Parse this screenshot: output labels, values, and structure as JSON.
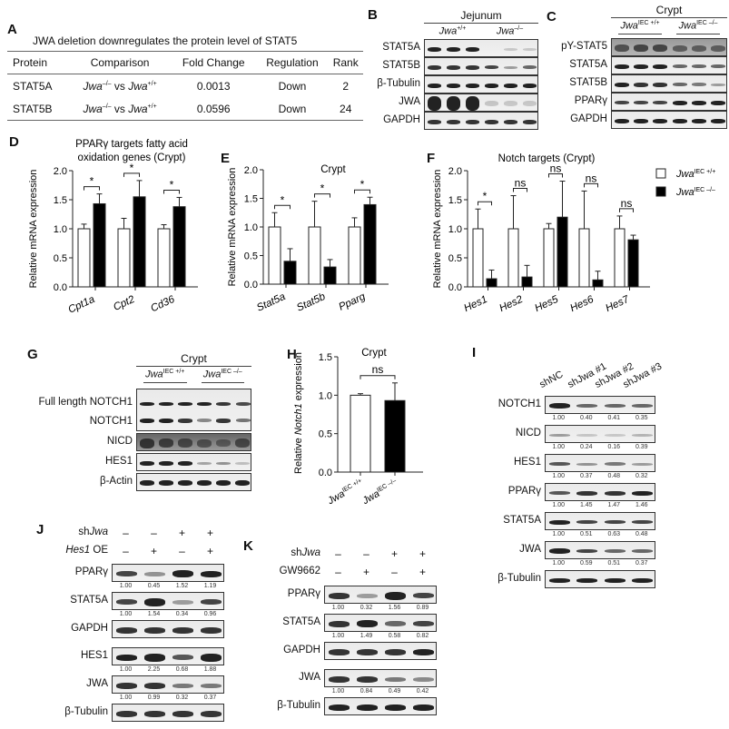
{
  "panels": {
    "A": {
      "label": "A",
      "title": "JWA deletion downregulates the protein level of STAT5",
      "columns": [
        "Protein",
        "Comparison",
        "Fold Change",
        "Regulation",
        "Rank"
      ],
      "rows": [
        {
          "protein": "STAT5A",
          "comp_a": "Jwa",
          "comp_a_sup": "–/–",
          "vs": " vs ",
          "comp_b": "Jwa",
          "comp_b_sup": "+/+",
          "fold": "0.0013",
          "regulation": "Down",
          "rank": "2"
        },
        {
          "protein": "STAT5B",
          "comp_a": "Jwa",
          "comp_a_sup": "–/–",
          "vs": " vs ",
          "comp_b": "Jwa",
          "comp_b_sup": "+/+",
          "fold": "0.0596",
          "regulation": "Down",
          "rank": "24"
        }
      ]
    },
    "B": {
      "label": "B",
      "tissue": "Jejunum",
      "group1": "Jwa",
      "group1_sup": "+/+",
      "group2": "Jwa",
      "group2_sup": "–/–",
      "rows": [
        "STAT5A",
        "STAT5B",
        "β-Tubulin",
        "JWA",
        "GAPDH"
      ]
    },
    "C": {
      "label": "C",
      "tissue": "Crypt",
      "group1": "Jwa",
      "group1_sup": "IEC +/+",
      "group2": "Jwa",
      "group2_sup": "IEC –/–",
      "rows": [
        "pY-STAT5",
        "STAT5A",
        "STAT5B",
        "PPARγ",
        "GAPDH"
      ]
    },
    "D": {
      "label": "D"
    },
    "E": {
      "label": "E"
    },
    "F": {
      "label": "F"
    },
    "G": {
      "label": "G",
      "tissue": "Crypt",
      "group1": "Jwa",
      "group1_sup": "IEC +/+",
      "group2": "Jwa",
      "group2_sup": "IEC –/–",
      "rows": [
        "Full length NOTCH1",
        "NOTCH1",
        "NICD",
        "HES1",
        "β-Actin"
      ]
    },
    "H": {
      "label": "H"
    },
    "I": {
      "label": "I",
      "lanes": [
        "shNC",
        "shJwa #1",
        "shJwa #2",
        "shJwa #3"
      ],
      "rows": [
        {
          "name": "NOTCH1",
          "quant": [
            "1.00",
            "0.40",
            "0.41",
            "0.35"
          ]
        },
        {
          "name": "NICD",
          "quant": [
            "1.00",
            "0.24",
            "0.16",
            "0.39"
          ]
        },
        {
          "name": "HES1",
          "quant": [
            "1.00",
            "0.37",
            "0.48",
            "0.32"
          ]
        },
        {
          "name": "PPARγ",
          "quant": [
            "1.00",
            "1.45",
            "1.47",
            "1.46"
          ]
        },
        {
          "name": "STAT5A",
          "quant": [
            "1.00",
            "0.51",
            "0.63",
            "0.48"
          ]
        },
        {
          "name": "JWA",
          "quant": [
            "1.00",
            "0.59",
            "0.51",
            "0.37"
          ]
        },
        {
          "name": "β-Tubulin",
          "quant": []
        }
      ]
    },
    "J": {
      "label": "J",
      "conditions": [
        {
          "name": "shJwa",
          "values": [
            "–",
            "–",
            "+",
            "+"
          ]
        },
        {
          "name": "Hes1 OE",
          "values": [
            "–",
            "+",
            "–",
            "+"
          ]
        }
      ],
      "rows": [
        {
          "name": "PPARγ",
          "quant": [
            "1.00",
            "0.45",
            "1.52",
            "1.19"
          ]
        },
        {
          "name": "STAT5A",
          "quant": [
            "1.00",
            "1.54",
            "0.34",
            "0.96"
          ]
        },
        {
          "name": "GAPDH",
          "quant": []
        },
        {
          "name": "HES1",
          "quant": [
            "1.00",
            "2.25",
            "0.68",
            "1.88"
          ]
        },
        {
          "name": "JWA",
          "quant": [
            "1.00",
            "0.99",
            "0.32",
            "0.37"
          ]
        },
        {
          "name": "β-Tubulin",
          "quant": []
        }
      ]
    },
    "K": {
      "label": "K",
      "conditions": [
        {
          "name": "shJwa",
          "values": [
            "–",
            "–",
            "+",
            "+"
          ]
        },
        {
          "name": "GW9662",
          "values": [
            "–",
            "+",
            "–",
            "+"
          ]
        }
      ],
      "rows": [
        {
          "name": "PPARγ",
          "quant": [
            "1.00",
            "0.32",
            "1.56",
            "0.89"
          ]
        },
        {
          "name": "STAT5A",
          "quant": [
            "1.00",
            "1.49",
            "0.58",
            "0.82"
          ]
        },
        {
          "name": "GAPDH",
          "quant": []
        },
        {
          "name": "JWA",
          "quant": [
            "1.00",
            "0.84",
            "0.49",
            "0.42"
          ]
        },
        {
          "name": "β-Tubulin",
          "quant": []
        }
      ]
    }
  },
  "legend": [
    {
      "label": "Jwa",
      "sup": "IEC +/+",
      "color": "#ffffff"
    },
    {
      "label": "Jwa",
      "sup": "IEC –/–",
      "color": "#000000"
    }
  ],
  "chart_data": [
    {
      "panel": "D",
      "type": "bar",
      "title": "PPARγ targets fatty acid oxidation genes (Crypt)",
      "xlabel": "",
      "ylabel": "Relative mRNA expression",
      "ylim": [
        0,
        2.0
      ],
      "yticks": [
        "0.0",
        "0.5",
        "1.0",
        "1.5",
        "2.0"
      ],
      "categories": [
        "Cpt1a",
        "Cpt2",
        "Cd36"
      ],
      "series": [
        {
          "name": "Jwa IEC +/+",
          "values": [
            1.0,
            1.0,
            1.0
          ],
          "errors": [
            0.08,
            0.18,
            0.07
          ]
        },
        {
          "name": "Jwa IEC -/-",
          "values": [
            1.43,
            1.55,
            1.38
          ],
          "errors": [
            0.17,
            0.28,
            0.16
          ]
        }
      ],
      "annotations": [
        "*",
        "*",
        "*"
      ]
    },
    {
      "panel": "E",
      "type": "bar",
      "title": "Crypt",
      "xlabel": "",
      "ylabel": "Relative mRNA expression",
      "ylim": [
        0,
        2.0
      ],
      "yticks": [
        "0.0",
        "0.5",
        "1.0",
        "1.5",
        "2.0"
      ],
      "categories": [
        "Stat5a",
        "Stat5b",
        "Pparg"
      ],
      "series": [
        {
          "name": "Jwa IEC +/+",
          "values": [
            1.0,
            1.0,
            1.0
          ],
          "errors": [
            0.25,
            0.45,
            0.16
          ]
        },
        {
          "name": "Jwa IEC -/-",
          "values": [
            0.4,
            0.3,
            1.39
          ],
          "errors": [
            0.22,
            0.13,
            0.13
          ]
        }
      ],
      "annotations": [
        "*",
        "*",
        "*"
      ]
    },
    {
      "panel": "F",
      "type": "bar",
      "title": "Notch targets (Crypt)",
      "xlabel": "",
      "ylabel": "Relative  mRNA expression",
      "ylim": [
        0,
        2.0
      ],
      "yticks": [
        "0.0",
        "0.5",
        "1.0",
        "1.5",
        "2.0"
      ],
      "categories": [
        "Hes1",
        "Hes2",
        "Hes5",
        "Hes6",
        "Hes7"
      ],
      "series": [
        {
          "name": "Jwa IEC +/+",
          "values": [
            1.0,
            1.0,
            1.0,
            1.0,
            1.0
          ],
          "errors": [
            0.34,
            0.57,
            0.09,
            0.65,
            0.22
          ]
        },
        {
          "name": "Jwa IEC -/-",
          "values": [
            0.14,
            0.17,
            1.2,
            0.12,
            0.81
          ],
          "errors": [
            0.15,
            0.2,
            0.62,
            0.15,
            0.08
          ]
        }
      ],
      "annotations": [
        "*",
        "ns",
        "ns",
        "ns",
        "ns"
      ],
      "legend_position": "top-right"
    },
    {
      "panel": "H",
      "type": "bar",
      "title": "Crypt",
      "xlabel": "",
      "ylabel": "Relative Notch1 expression",
      "ylim": [
        0,
        1.5
      ],
      "yticks": [
        "0.0",
        "0.5",
        "1.0",
        "1.5"
      ],
      "categories": [
        "Jwa IEC +/+",
        "Jwa IEC -/-"
      ],
      "values": [
        1.0,
        0.93
      ],
      "errors": [
        0.02,
        0.23
      ],
      "annotations": [
        "ns"
      ]
    }
  ]
}
